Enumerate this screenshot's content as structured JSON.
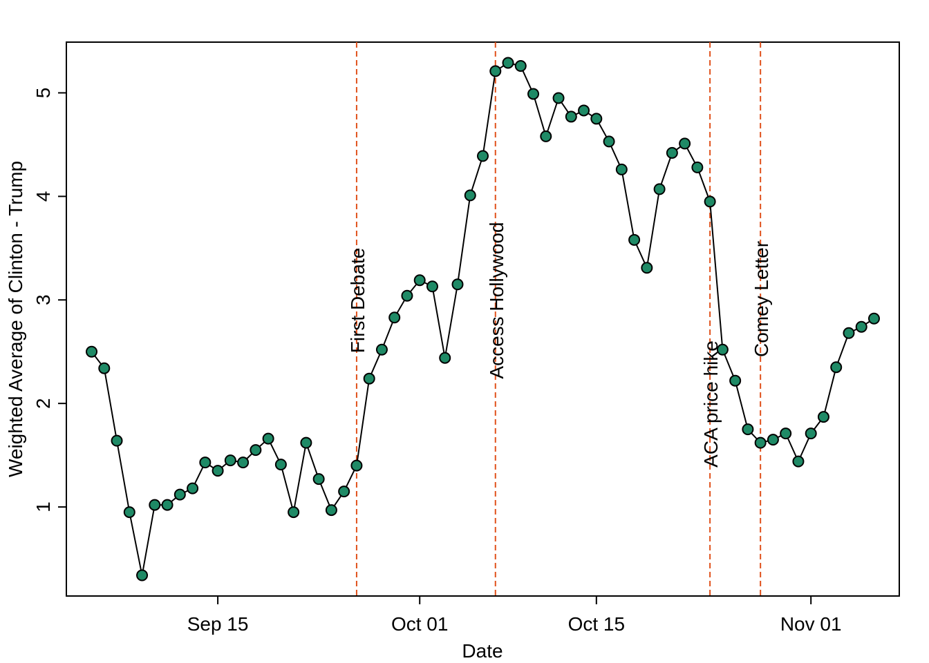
{
  "chart_data": {
    "type": "line",
    "x_label": "Date",
    "y_label": "Weighted Average of Clinton - Trump",
    "x": [
      "Sep 05",
      "Sep 06",
      "Sep 07",
      "Sep 08",
      "Sep 09",
      "Sep 10",
      "Sep 11",
      "Sep 12",
      "Sep 13",
      "Sep 14",
      "Sep 15",
      "Sep 16",
      "Sep 17",
      "Sep 18",
      "Sep 19",
      "Sep 20",
      "Sep 21",
      "Sep 22",
      "Sep 23",
      "Sep 24",
      "Sep 25",
      "Sep 26",
      "Sep 27",
      "Sep 28",
      "Sep 29",
      "Sep 30",
      "Oct 01",
      "Oct 02",
      "Oct 03",
      "Oct 04",
      "Oct 05",
      "Oct 06",
      "Oct 07",
      "Oct 08",
      "Oct 09",
      "Oct 10",
      "Oct 11",
      "Oct 12",
      "Oct 13",
      "Oct 14",
      "Oct 15",
      "Oct 16",
      "Oct 17",
      "Oct 18",
      "Oct 19",
      "Oct 20",
      "Oct 21",
      "Oct 22",
      "Oct 23",
      "Oct 24",
      "Oct 25",
      "Oct 26",
      "Oct 27",
      "Oct 28",
      "Oct 29",
      "Oct 30",
      "Oct 31",
      "Nov 01",
      "Nov 02",
      "Nov 03",
      "Nov 04",
      "Nov 05",
      "Nov 06"
    ],
    "series": [
      {
        "color": "#1f8a66",
        "line_color": "#000000",
        "values": [
          2.5,
          2.34,
          1.64,
          0.95,
          0.34,
          1.02,
          1.02,
          1.12,
          1.18,
          1.43,
          1.35,
          1.45,
          1.43,
          1.55,
          1.66,
          1.41,
          0.95,
          1.62,
          1.27,
          0.97,
          1.15,
          1.4,
          2.24,
          2.52,
          2.83,
          3.04,
          3.19,
          3.13,
          2.44,
          3.15,
          4.01,
          4.39,
          5.21,
          5.29,
          5.26,
          4.99,
          4.58,
          4.95,
          4.77,
          4.83,
          4.75,
          4.53,
          4.26,
          3.58,
          3.31,
          4.07,
          4.42,
          4.51,
          4.28,
          3.95,
          2.52,
          2.22,
          1.75,
          1.62,
          1.65,
          1.71,
          1.44,
          1.71,
          1.87,
          2.35,
          2.68,
          2.74,
          2.82
        ]
      }
    ],
    "xlim": [
      "Sep 03",
      "Nov 08"
    ],
    "xticks": [
      "Sep 15",
      "Oct 01",
      "Oct 15",
      "Nov 01"
    ],
    "ylim": [
      0.14,
      5.49
    ],
    "yticks": [
      1,
      2,
      3,
      4,
      5
    ],
    "annotation_color": "#e0501a",
    "annotations": [
      {
        "label": "First Debate",
        "x": "Sep 26"
      },
      {
        "label": "Access Hollywood",
        "x": "Oct 07"
      },
      {
        "label": "ACA price hike",
        "x": "Oct 24"
      },
      {
        "label": "Comey Letter",
        "x": "Oct 28"
      }
    ]
  }
}
